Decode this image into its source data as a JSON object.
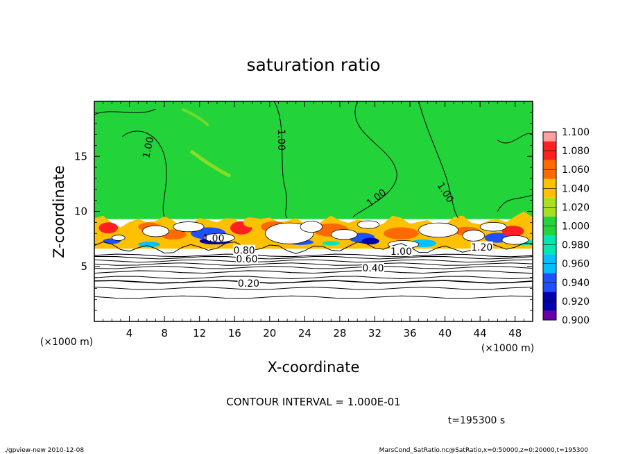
{
  "chart_data": {
    "type": "heatmap",
    "title": "saturation ratio",
    "xlabel": "X-coordinate",
    "ylabel": "Z-coordinate",
    "x_unit_label": "(×1000 m)",
    "y_unit_label": "(×1000 m)",
    "xlim": [
      0,
      50
    ],
    "ylim": [
      0,
      20
    ],
    "x_ticks": [
      4,
      8,
      12,
      16,
      20,
      24,
      28,
      32,
      36,
      40,
      44,
      48
    ],
    "x_tick_labels": [
      "4",
      "8",
      "12",
      "16",
      "20",
      "24",
      "28",
      "32",
      "36",
      "40",
      "44",
      "48"
    ],
    "y_ticks": [
      5,
      10,
      15
    ],
    "y_tick_labels": [
      "5",
      "10",
      "15"
    ],
    "colorbar": {
      "levels": [
        0.9,
        0.92,
        0.94,
        0.96,
        0.98,
        1.0,
        1.02,
        1.04,
        1.06,
        1.08,
        1.1
      ],
      "labels": [
        "0.900",
        "0.920",
        "0.940",
        "0.960",
        "0.980",
        "1.000",
        "1.020",
        "1.040",
        "1.060",
        "1.080",
        "1.100"
      ],
      "colors": [
        "#6a00a8",
        "#0000b0",
        "#1e50ff",
        "#00c0ff",
        "#00e8b0",
        "#22d43a",
        "#a8e020",
        "#ffc000",
        "#ff6a00",
        "#ff2020",
        "#ffa0a0"
      ]
    },
    "contour_labels": [
      {
        "text": "1.00",
        "x": 6.2,
        "z": 15.8,
        "angle": -78
      },
      {
        "text": "1.00",
        "x": 21.3,
        "z": 16.5,
        "angle": 90
      },
      {
        "text": "1.00",
        "x": 32.2,
        "z": 11.2,
        "angle": -38
      },
      {
        "text": "1.00",
        "x": 40.0,
        "z": 11.7,
        "angle": 58
      },
      {
        "text": "1.00",
        "x": 13.6,
        "z": 7.5,
        "angle": 0
      },
      {
        "text": "1.00",
        "x": 35.0,
        "z": 6.3,
        "angle": 0
      },
      {
        "text": "1.20",
        "x": 44.2,
        "z": 6.7,
        "angle": 0
      },
      {
        "text": "0.40",
        "x": 31.8,
        "z": 4.8,
        "angle": 0
      },
      {
        "text": "0.20",
        "x": 17.6,
        "z": 3.4,
        "angle": 0
      },
      {
        "text": "0.60",
        "x": 17.4,
        "z": 5.6,
        "angle": 0
      },
      {
        "text": "0.80",
        "x": 17.1,
        "z": 6.4,
        "angle": 0
      }
    ],
    "contour_interval_text": "CONTOUR INTERVAL = 1.000E-01",
    "time_text": "t=195300 s",
    "footer_left": "./gpview-new   2010-12-08",
    "footer_right": "MarsCond_SatRatio.nc@SatRatio,x=0:50000,z=0:20000,t=195300"
  }
}
